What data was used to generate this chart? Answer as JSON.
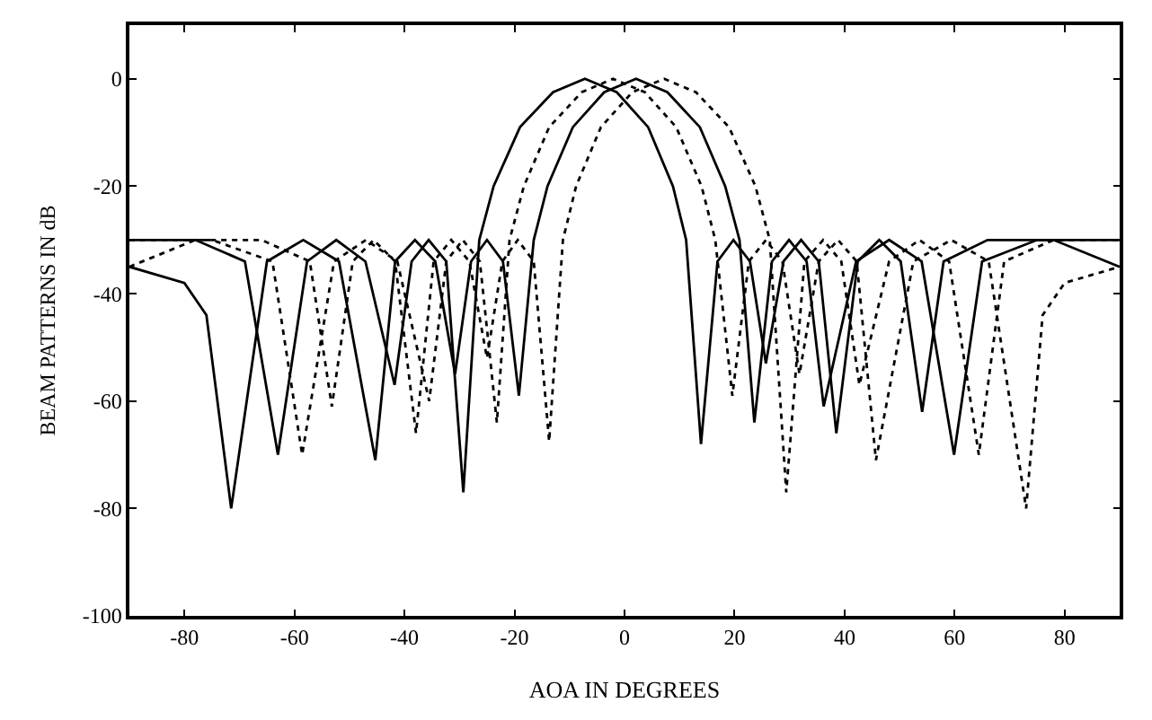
{
  "chart_data": {
    "type": "line",
    "xlabel": "AOA IN DEGREES",
    "ylabel": "BEAM PATTERNS IN dB",
    "xlim": [
      -90,
      90
    ],
    "xticks": [
      -80,
      -60,
      -40,
      -20,
      0,
      20,
      40,
      60,
      80
    ],
    "ylim": [
      -100,
      10
    ],
    "yticks": [
      0,
      -20,
      -40,
      -60,
      -80,
      -100
    ],
    "marker": "none",
    "series": [
      {
        "color": "#000000",
        "line_style": "solid",
        "x": [
          -90,
          -78,
          -69,
          -63,
          -57.7,
          -52.4,
          -47.1,
          -41.8,
          -38.7,
          -35.6,
          -32.4,
          -29.3,
          -26.4,
          -23.8,
          -19.0,
          -13.0,
          -7.2,
          -1.4,
          4.3,
          8.8,
          11.2,
          13.9,
          16.9,
          19.8,
          22.8,
          25.7,
          28.9,
          32.1,
          35.3,
          38.5,
          42.4,
          46.3,
          50.2,
          54.1,
          58,
          66,
          78,
          90
        ],
        "values": [
          -30,
          -30,
          -34,
          -70,
          -34,
          -30,
          -34,
          -57,
          -34,
          -30,
          -34,
          -77,
          -30,
          -20,
          -9,
          -2.5,
          0,
          -2.5,
          -9,
          -20,
          -30,
          -68,
          -34,
          -30,
          -34,
          -53,
          -34,
          -30,
          -34,
          -66,
          -34,
          -30,
          -34,
          -62,
          -34,
          -30,
          -30,
          -35
        ]
      },
      {
        "color": "#000000",
        "line_style": "solid",
        "x": [
          -90,
          -80,
          -76,
          -71.5,
          -65,
          -58.4,
          -51.9,
          -45.3,
          -41.7,
          -38.1,
          -34.4,
          -30.8,
          -27.9,
          -25,
          -22.1,
          -19.2,
          -16.5,
          -14.0,
          -9.4,
          -3.7,
          2.1,
          7.8,
          13.7,
          18.3,
          20.9,
          23.6,
          26.8,
          29.9,
          33.1,
          36.2,
          42.1,
          48.1,
          54,
          59.9,
          65,
          75,
          90
        ],
        "values": [
          -35,
          -38,
          -44,
          -80,
          -34,
          -30,
          -34,
          -71,
          -34,
          -30,
          -34,
          -55,
          -34,
          -30,
          -34,
          -59,
          -30,
          -20,
          -9,
          -2.5,
          0,
          -2.5,
          -9,
          -20,
          -30,
          -64,
          -34,
          -30,
          -34,
          -61,
          -34,
          -30,
          -34,
          -70,
          -34,
          -30,
          -30
        ]
      },
      {
        "color": "#000000",
        "line_style": "dotted",
        "x": [
          -90,
          -75,
          -64,
          -58.6,
          -52.8,
          -47,
          -41.3,
          -35.5,
          -32.4,
          -29.4,
          -26.3,
          -23.2,
          -20.9,
          -18.3,
          -13.7,
          -7.8,
          -2.1,
          3.7,
          9.4,
          14.0,
          16.5,
          19.6,
          22.6,
          25.7,
          28.7,
          31.8,
          35.3,
          38.8,
          42.2,
          45.7,
          52.5,
          59.4,
          66.2,
          73,
          76,
          80,
          90
        ],
        "values": [
          -30,
          -30,
          -34,
          -70,
          -34,
          -30,
          -34,
          -60,
          -34,
          -30,
          -34,
          -64,
          -30,
          -20,
          -9,
          -2.5,
          0,
          -2.5,
          -9,
          -20,
          -30,
          -59,
          -34,
          -30,
          -34,
          -55,
          -34,
          -30,
          -34,
          -71,
          -34,
          -30,
          -34,
          -80,
          -44,
          -38,
          -35
        ]
      },
      {
        "color": "#000000",
        "line_style": "dotted",
        "x": [
          -90,
          -78,
          -66,
          -57.2,
          -53.2,
          -49.4,
          -45.6,
          -41.7,
          -37.9,
          -34.7,
          -31.5,
          -28.2,
          -25,
          -22.2,
          -19.4,
          -16.5,
          -13.7,
          -11.2,
          -8.8,
          -4.3,
          1.4,
          7.2,
          13.0,
          19.0,
          23.8,
          26.4,
          29.4,
          32.7,
          36.1,
          39.4,
          42.7,
          48.1,
          53.6,
          59,
          64.4,
          69,
          78,
          90
        ],
        "values": [
          -35,
          -30,
          -30,
          -34,
          -61,
          -34,
          -30,
          -34,
          -66,
          -34,
          -30,
          -34,
          -52,
          -34,
          -30,
          -34,
          -67.5,
          -30,
          -20,
          -9,
          -2.5,
          0,
          -2.5,
          -9,
          -20,
          -30,
          -77,
          -34,
          -30,
          -34,
          -57,
          -34,
          -30,
          -34,
          -70,
          -34,
          -30,
          -30
        ]
      }
    ]
  }
}
